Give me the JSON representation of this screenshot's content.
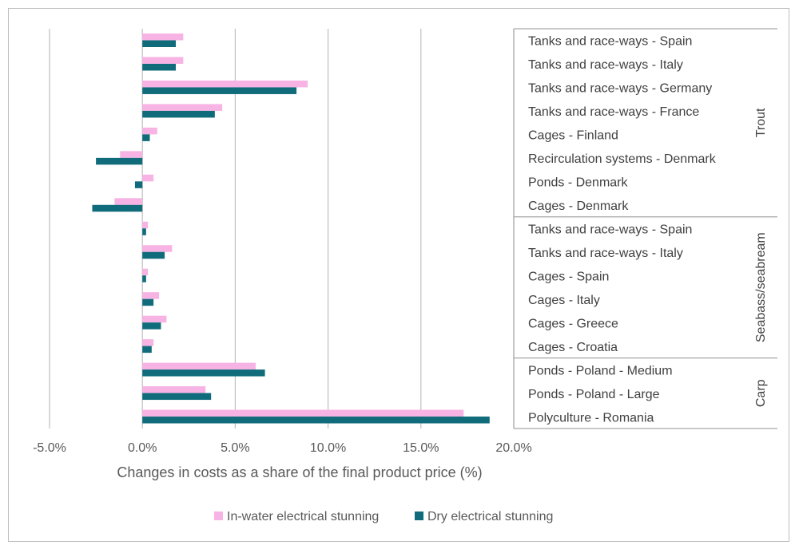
{
  "chart_data": {
    "type": "bar",
    "orientation": "horizontal",
    "xlabel": "Changes in costs as a share of the final product price (%)",
    "xlim": [
      -5,
      20
    ],
    "xticks": [
      -5,
      0,
      5,
      10,
      15,
      20
    ],
    "xtick_labels": [
      "-5.0%",
      "0.0%",
      "5.0%",
      "10.0%",
      "15.0%",
      "20.0%"
    ],
    "gridlines": true,
    "legend_position": "bottom",
    "categories": [
      "Tanks and race-ways - Spain",
      "Tanks and race-ways - Italy",
      "Tanks and race-ways - Germany",
      "Tanks and race-ways - France",
      "Cages - Finland",
      "Recirculation systems - Denmark",
      "Ponds - Denmark",
      "Cages - Denmark",
      "Tanks and race-ways - Spain",
      "Tanks and race-ways - Italy",
      "Cages - Spain",
      "Cages - Italy",
      "Cages - Greece",
      "Cages - Croatia",
      "Ponds - Poland - Medium",
      "Ponds - Poland - Large",
      "Polyculture - Romania"
    ],
    "groups": [
      {
        "name": "Trout",
        "count": 8
      },
      {
        "name": "Seabass/seabream",
        "count": 6
      },
      {
        "name": "Carp",
        "count": 3
      }
    ],
    "series": [
      {
        "name": "In-water electrical stunning",
        "color": "#f7b3e3",
        "values": [
          2.2,
          2.2,
          8.9,
          4.3,
          0.8,
          -1.2,
          0.6,
          -1.5,
          0.3,
          1.6,
          0.3,
          0.9,
          1.3,
          0.6,
          6.1,
          3.4,
          17.3
        ]
      },
      {
        "name": "Dry electrical stunning",
        "color": "#106b7a",
        "values": [
          1.8,
          1.8,
          8.3,
          3.9,
          0.4,
          -2.5,
          -0.4,
          -2.7,
          0.2,
          1.2,
          0.2,
          0.6,
          1.0,
          0.5,
          6.6,
          3.7,
          18.7
        ]
      }
    ]
  }
}
